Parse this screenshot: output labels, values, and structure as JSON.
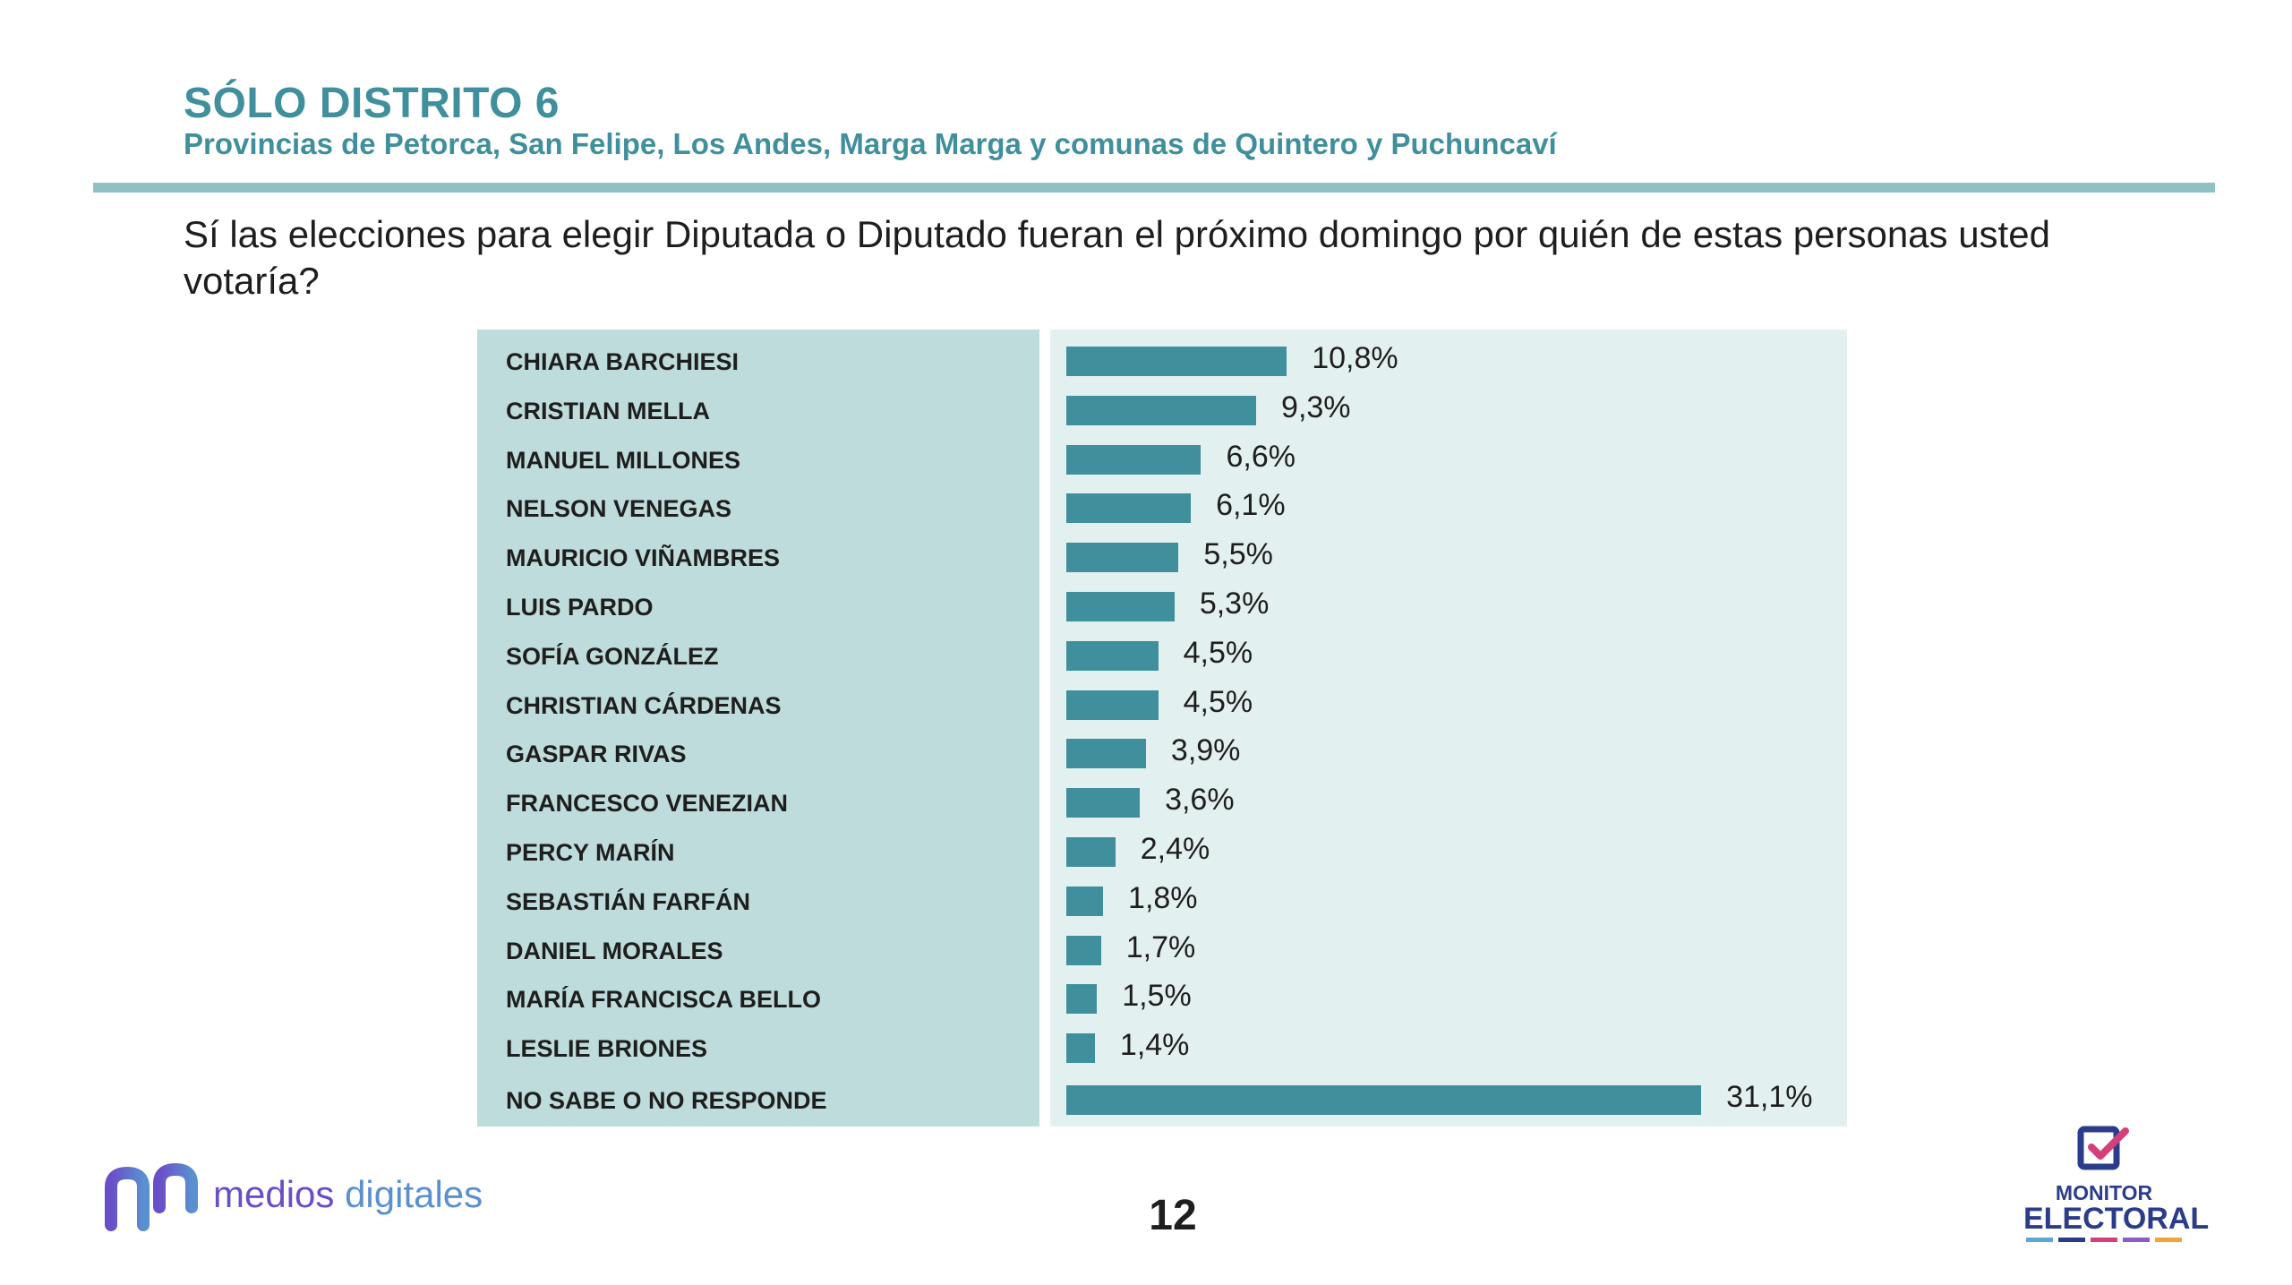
{
  "header": {
    "title": "SÓLO DISTRITO 6",
    "subtitle": "Provincias de Petorca, San Felipe, Los Andes, Marga Marga y comunas de Quintero y Puchuncaví"
  },
  "question": "Sí las elecciones para elegir Diputada o Diputado fueran el próximo domingo por quién de estas personas usted votaría?",
  "chart_data": {
    "type": "bar",
    "orientation": "horizontal",
    "categories": [
      "CHIARA BARCHIESI",
      "CRISTIAN MELLA",
      "MANUEL MILLONES",
      "NELSON VENEGAS",
      "MAURICIO VIÑAMBRES",
      "LUIS PARDO",
      "SOFÍA GONZÁLEZ",
      "CHRISTIAN CÁRDENAS",
      "GASPAR RIVAS",
      "FRANCESCO VENEZIAN",
      "PERCY MARÍN",
      "SEBASTIÁN FARFÁN",
      "DANIEL MORALES",
      "MARÍA FRANCISCA BELLO",
      "LESLIE BRIONES",
      "NO SABE O NO RESPONDE"
    ],
    "values": [
      10.8,
      9.3,
      6.6,
      6.1,
      5.5,
      5.3,
      4.5,
      4.5,
      3.9,
      3.6,
      2.4,
      1.8,
      1.7,
      1.5,
      1.4,
      31.1
    ],
    "value_labels": [
      "10,8%",
      "9,3%",
      "6,6%",
      "6,1%",
      "5,5%",
      "5,3%",
      "4,5%",
      "4,5%",
      "3,9%",
      "3,6%",
      "2,4%",
      "1,8%",
      "1,7%",
      "1,5%",
      "1,4%",
      "31,1%"
    ],
    "unit": "%",
    "xlim": [
      0,
      36
    ],
    "grid": false,
    "bar_color": "#3f8f9c"
  },
  "footer": {
    "brand_left_part1": "medios ",
    "brand_left_part2": "digitales",
    "page_number": "12",
    "brand_right_top": "MONITOR",
    "brand_right_bottom": "ELECTORAL"
  },
  "colors": {
    "accent": "#3f8f9c",
    "label_panel": "#bfdcdc",
    "bar_panel": "#e3f0f0",
    "rule": "#8fc1c4",
    "monitor_blue": "#2b3d8a",
    "monitor_pink": "#d6407a"
  }
}
